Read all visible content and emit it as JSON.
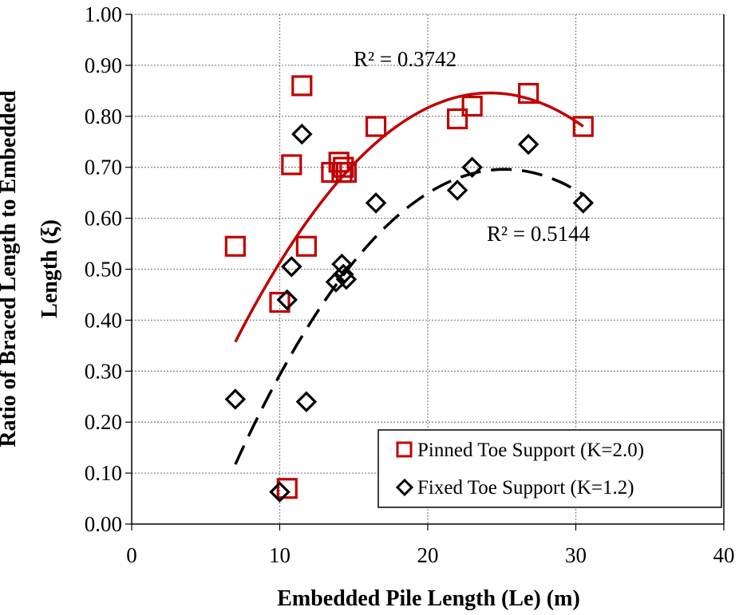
{
  "chart_data": {
    "type": "scatter",
    "xlabel": "Embedded Pile Length (Le) (m)",
    "ylabel_line1": "Ratio of Braced Length to Embedded",
    "ylabel_line2": "Length (ξ)",
    "xlim": [
      0,
      40
    ],
    "ylim": [
      0,
      1
    ],
    "x_ticks": [
      "0",
      "10",
      "20",
      "30",
      "40"
    ],
    "y_ticks": [
      "0.00",
      "0.10",
      "0.20",
      "0.30",
      "0.40",
      "0.50",
      "0.60",
      "0.70",
      "0.80",
      "0.90",
      "1.00"
    ],
    "grid": true,
    "legend_position": "bottom-right",
    "series": [
      {
        "name": "Pinned Toe Support (K=2.0)",
        "marker": "square",
        "color": "#c00000",
        "x": [
          7.0,
          10.0,
          10.5,
          10.8,
          11.5,
          11.8,
          13.5,
          14.0,
          14.2,
          14.3,
          14.5,
          16.5,
          22.0,
          23.0,
          26.8,
          30.5
        ],
        "y": [
          0.545,
          0.435,
          0.07,
          0.705,
          0.86,
          0.545,
          0.69,
          0.71,
          0.69,
          0.7,
          0.69,
          0.78,
          0.795,
          0.82,
          0.845,
          0.78
        ],
        "trendline": {
          "type": "polynomial",
          "r2_label": "R² = 0.3742",
          "x_from": 7.0,
          "x_to": 30.5,
          "coeffs": [
            -0.1215,
            0.07995,
            -0.001652
          ]
        }
      },
      {
        "name": "Fixed Toe Support (K=1.2)",
        "marker": "diamond",
        "color": "#000000",
        "x": [
          7.0,
          10.0,
          10.5,
          10.8,
          11.5,
          11.8,
          13.8,
          14.2,
          14.3,
          14.5,
          16.5,
          22.0,
          23.0,
          26.8,
          30.5
        ],
        "y": [
          0.245,
          0.063,
          0.44,
          0.505,
          0.765,
          0.24,
          0.475,
          0.51,
          0.49,
          0.48,
          0.63,
          0.655,
          0.7,
          0.745,
          0.63
        ],
        "trendline": {
          "type": "polynomial",
          "r2_label": "R² = 0.5144",
          "x_from": 7.0,
          "x_to": 30.5,
          "coeffs": [
            -0.4146,
            0.08822,
            -0.001752
          ]
        }
      }
    ]
  }
}
